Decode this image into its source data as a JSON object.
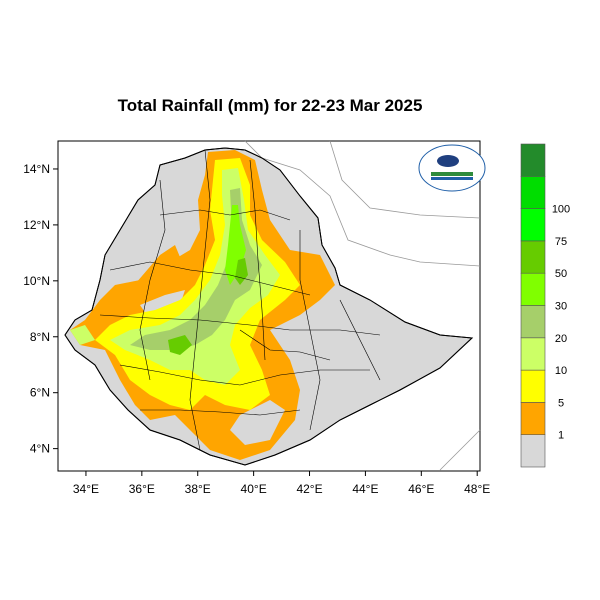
{
  "title": "Total Rainfall (mm) for 22-23 Mar 2025",
  "axes": {
    "x_ticks": [
      "34°E",
      "36°E",
      "38°E",
      "40°E",
      "42°E",
      "44°E",
      "46°E",
      "48°E"
    ],
    "y_ticks": [
      "14°N",
      "12°N",
      "10°N",
      "8°N",
      "6°N",
      "4°N"
    ]
  },
  "map_extent": {
    "lon": [
      33.0,
      48.1
    ],
    "lat": [
      3.2,
      15.0
    ]
  },
  "colorbar": {
    "labels": [
      "1",
      "5",
      "10",
      "20",
      "30",
      "50",
      "75",
      "100"
    ],
    "colors": [
      "#d8d8d8",
      "#ffa500",
      "#ffff00",
      "#ccff66",
      "#a6cf6a",
      "#80ff00",
      "#66cc00",
      "#00ff00",
      "#00dd00",
      "#238b2b"
    ]
  },
  "colors": {
    "no_rain": "#d8d8d8",
    "border": "#000000",
    "neighbour": "#999999"
  },
  "logo_icon": "meteorology-agency-logo"
}
